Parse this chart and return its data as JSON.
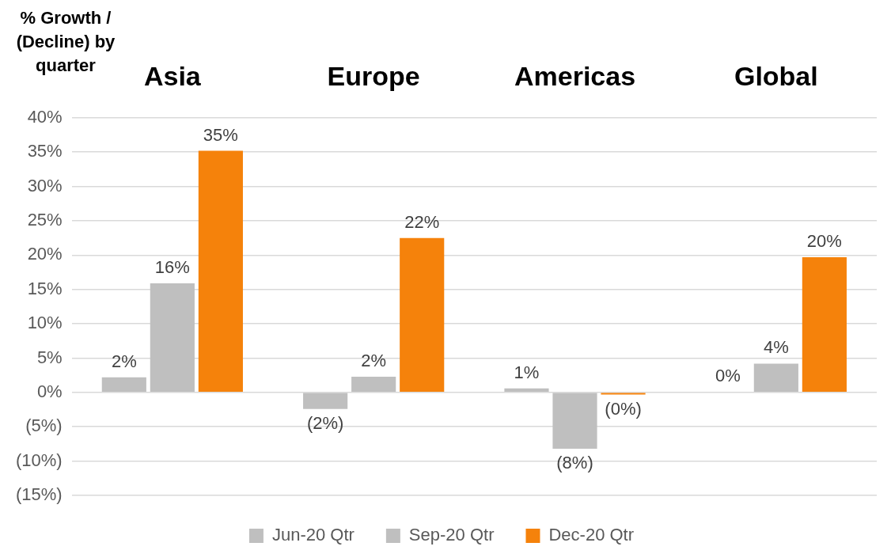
{
  "chart_data": {
    "type": "bar",
    "ylabel": "% Growth / (Decline) by quarter",
    "categories": [
      "Asia",
      "Europe",
      "Americas",
      "Global"
    ],
    "series": [
      {
        "name": "Jun-20 Qtr",
        "color": "#bfbfbf",
        "values": [
          2.2,
          -2.4,
          0.6,
          0.1
        ],
        "value_labels": [
          "2%",
          "(2%)",
          "1%",
          "0%"
        ]
      },
      {
        "name": "Sep-20 Qtr",
        "color": "#bfbfbf",
        "values": [
          15.9,
          2.3,
          -8.2,
          4.2
        ],
        "value_labels": [
          "16%",
          "2%",
          "(8%)",
          "4%"
        ]
      },
      {
        "name": "Dec-20 Qtr",
        "color": "#f5820b",
        "values": [
          35.2,
          22.5,
          -0.3,
          19.7
        ],
        "value_labels": [
          "35%",
          "22%",
          "(0%)",
          "20%"
        ]
      }
    ],
    "ylim": [
      -15,
      40
    ],
    "yticks": [
      {
        "value": -15,
        "label": "(15%)"
      },
      {
        "value": -10,
        "label": "(10%)"
      },
      {
        "value": -5,
        "label": "(5%)"
      },
      {
        "value": 0,
        "label": "0%"
      },
      {
        "value": 5,
        "label": "5%"
      },
      {
        "value": 10,
        "label": "10%"
      },
      {
        "value": 15,
        "label": "15%"
      },
      {
        "value": 20,
        "label": "20%"
      },
      {
        "value": 25,
        "label": "25%"
      },
      {
        "value": 30,
        "label": "30%"
      },
      {
        "value": 35,
        "label": "35%"
      },
      {
        "value": 40,
        "label": "40%"
      }
    ],
    "grid": "y",
    "legend": "bottom"
  }
}
